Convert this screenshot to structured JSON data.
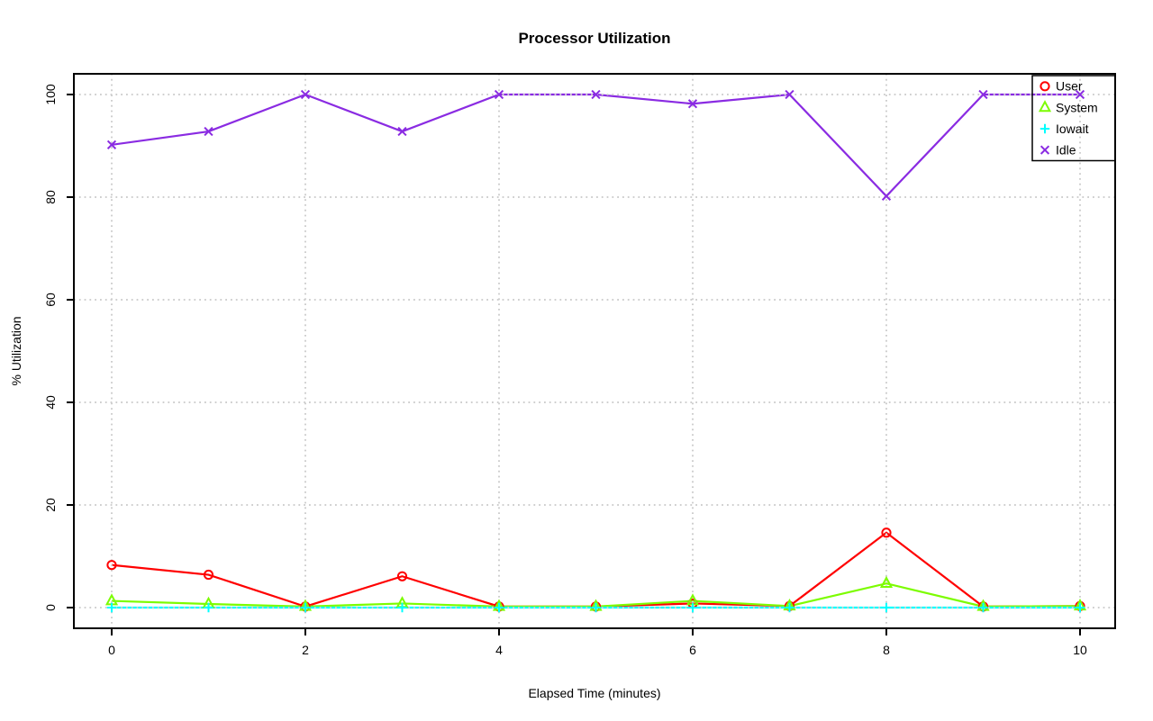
{
  "window": {
    "title": "Processor Utilization"
  },
  "chart_data": {
    "type": "line",
    "title": "Processor Utilization",
    "xlabel": "Elapsed Time (minutes)",
    "ylabel": "% Utilization",
    "x": [
      0,
      1,
      2,
      3,
      4,
      5,
      6,
      7,
      8,
      9,
      10
    ],
    "xticks": [
      0,
      2,
      4,
      6,
      8,
      10
    ],
    "yticks": [
      0,
      20,
      40,
      60,
      80,
      100
    ],
    "xlim": [
      0,
      10
    ],
    "ylim": [
      0,
      100
    ],
    "grid": true,
    "grid_style": "dotted",
    "grid_color": "#cfcfcf",
    "axis_color": "#000000",
    "legend_position": "top-right",
    "legend_transparent": true,
    "series": [
      {
        "name": "User",
        "color": "#ff0000",
        "marker": "circle",
        "values": [
          8.3,
          6.4,
          0.2,
          6.1,
          0.2,
          0.2,
          0.8,
          0.3,
          14.6,
          0.2,
          0.3
        ]
      },
      {
        "name": "System",
        "color": "#7cfc00",
        "marker": "triangle",
        "values": [
          1.3,
          0.7,
          0.2,
          0.8,
          0.2,
          0.2,
          1.3,
          0.3,
          4.7,
          0.2,
          0.3
        ]
      },
      {
        "name": "Iowait",
        "color": "#00ffff",
        "marker": "plus",
        "values": [
          0,
          0,
          0,
          0,
          0,
          0,
          0,
          0,
          0,
          0,
          0
        ]
      },
      {
        "name": "Idle",
        "color": "#8a2be2",
        "marker": "x",
        "values": [
          90.2,
          92.8,
          100,
          92.8,
          100,
          100,
          98.2,
          100,
          80.2,
          100,
          100
        ]
      }
    ]
  }
}
